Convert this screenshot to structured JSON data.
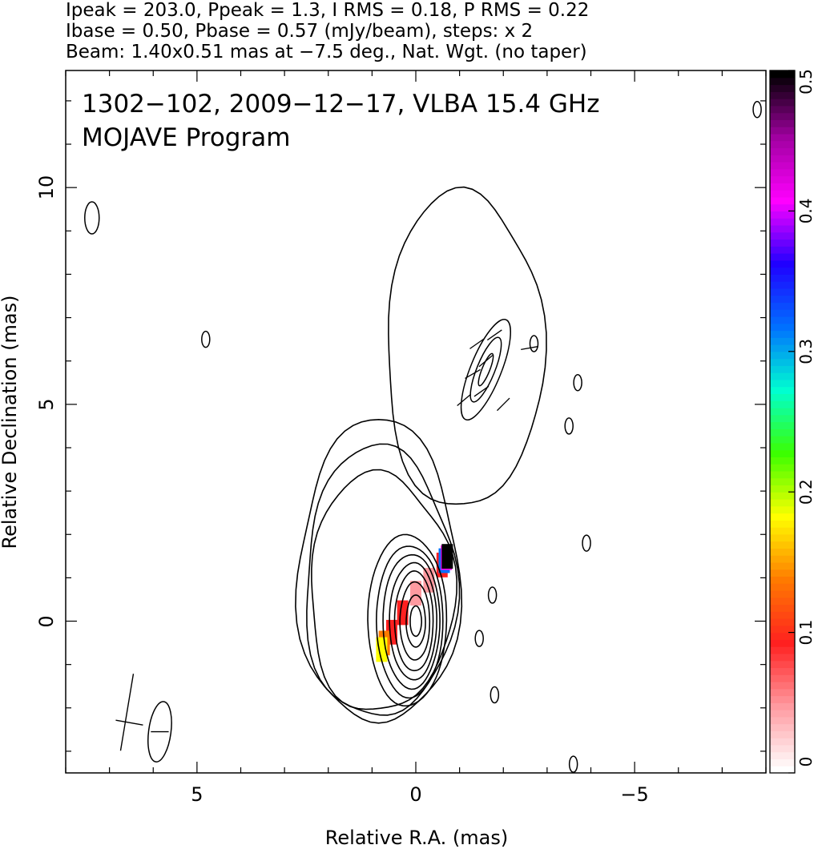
{
  "header": {
    "line1": "Ipeak = 203.0, Ppeak = 1.3, I RMS = 0.18, P RMS = 0.22",
    "line2": "Ibase = 0.50, Pbase = 0.57 (mJy/beam), steps: x 2",
    "line3": "Beam: 1.40x0.51 mas at −7.5 deg., Nat. Wgt. (no taper)"
  },
  "plot_title": {
    "line1": "1302−102, 2009−12−17, VLBA 15.4 GHz",
    "line2": "MOJAVE Program"
  },
  "chart_data": {
    "type": "contour",
    "xlabel": "Relative R.A. (mas)",
    "ylabel": "Relative Declination (mas)",
    "xlim": [
      8,
      -8
    ],
    "ylim": [
      -3.5,
      12.7
    ],
    "x_ticks": [
      5,
      0,
      -5
    ],
    "x_tick_labels": [
      "5",
      "0",
      "−5"
    ],
    "y_ticks": [
      0,
      5,
      10
    ],
    "y_tick_labels": [
      "0",
      "5",
      "10"
    ],
    "grid": false,
    "colorbar": {
      "range": [
        0,
        0.5
      ],
      "ticks": [
        0,
        0.1,
        0.2,
        0.3,
        0.4,
        0.5
      ],
      "tick_labels": [
        "0",
        "0.1",
        "0.2",
        "0.3",
        "0.4",
        "0.5"
      ],
      "colormap": [
        "#ffffff",
        "#ff9aa0",
        "#ff2020",
        "#ff7a00",
        "#ffff00",
        "#3cff00",
        "#00ffd0",
        "#0070ff",
        "#2000ff",
        "#ff00ff",
        "#a000a0",
        "#000000"
      ]
    },
    "core": {
      "x": 0,
      "y": 0,
      "peak_mJy_per_beam": 203.0
    },
    "contours": {
      "base_mJy_per_beam": 0.5,
      "step_factor": 2,
      "color": "#000000",
      "core_levels": [
        {
          "xmin": -1.0,
          "xmax": 2.7,
          "ymin": -2.4,
          "ymax": 4.6,
          "center": [
            0.35,
            1.0
          ]
        },
        {
          "xmin": -0.9,
          "xmax": 2.55,
          "ymin": -2.25,
          "ymax": 4.0,
          "center": [
            0.35,
            0.9
          ]
        },
        {
          "xmin": -0.85,
          "xmax": 2.45,
          "ymin": -2.1,
          "ymax": 3.4,
          "center": [
            0.35,
            0.8
          ]
        },
        {
          "xmin": -0.7,
          "xmax": 1.1,
          "ymin": -1.95,
          "ymax": 2.0,
          "center": [
            0.1,
            0.2
          ]
        },
        {
          "xmin": -0.62,
          "xmax": 0.9,
          "ymin": -1.75,
          "ymax": 1.75,
          "center": [
            0.1,
            0.1
          ]
        },
        {
          "xmin": -0.55,
          "xmax": 0.75,
          "ymin": -1.55,
          "ymax": 1.55,
          "center": [
            0.05,
            0.05
          ]
        },
        {
          "xmin": -0.48,
          "xmax": 0.6,
          "ymin": -1.35,
          "ymax": 1.35,
          "center": [
            0.05,
            0.0
          ]
        },
        {
          "xmin": -0.4,
          "xmax": 0.48,
          "ymin": -1.15,
          "ymax": 1.15,
          "center": [
            0.02,
            0.0
          ]
        },
        {
          "xmin": -0.32,
          "xmax": 0.36,
          "ymin": -0.9,
          "ymax": 0.9,
          "center": [
            0.0,
            0.0
          ]
        },
        {
          "xmin": -0.22,
          "xmax": 0.22,
          "ymin": -0.6,
          "ymax": 0.6,
          "center": [
            0.0,
            0.0
          ]
        },
        {
          "xmin": -0.13,
          "xmax": 0.13,
          "ymin": -0.35,
          "ymax": 0.35,
          "center": [
            0.0,
            0.0
          ]
        }
      ],
      "jet_region": {
        "xmin": -2.9,
        "xmax": 0.7,
        "ymin": 2.6,
        "ymax": 9.9
      },
      "jet_knot": {
        "x": -1.6,
        "y": 5.8
      },
      "isolated_islands": [
        {
          "x": 7.4,
          "y": 9.3
        },
        {
          "x": 4.8,
          "y": 6.5
        },
        {
          "x": -2.7,
          "y": 6.4
        },
        {
          "x": -3.7,
          "y": 5.5
        },
        {
          "x": -3.5,
          "y": 4.5
        },
        {
          "x": -3.9,
          "y": 1.8
        },
        {
          "x": -1.75,
          "y": 0.6
        },
        {
          "x": -1.45,
          "y": -0.4
        },
        {
          "x": -1.8,
          "y": -1.7
        },
        {
          "x": -3.6,
          "y": -3.3
        },
        {
          "x": -7.8,
          "y": 11.8
        }
      ]
    },
    "polarization": {
      "fractional_pixels": [
        {
          "x": -0.6,
          "y": 1.45,
          "value": 0.08
        },
        {
          "x": -0.3,
          "y": 1.1,
          "value": 0.06
        },
        {
          "x": 0.0,
          "y": 0.8,
          "value": 0.05
        },
        {
          "x": 0.3,
          "y": 0.35,
          "value": 0.07
        },
        {
          "x": 0.55,
          "y": -0.1,
          "value": 0.09
        },
        {
          "x": 0.72,
          "y": -0.35,
          "value": 0.15
        },
        {
          "x": 0.78,
          "y": -0.5,
          "value": 0.2
        },
        {
          "x": 0.0,
          "y": 0.05,
          "value": 0.02
        },
        {
          "x": -0.65,
          "y": 1.55,
          "value": 0.3
        },
        {
          "x": -0.7,
          "y": 1.62,
          "value": 0.4
        },
        {
          "x": -0.72,
          "y": 1.65,
          "value": 0.5
        }
      ],
      "evpa_ticks": [
        {
          "x": -1.4,
          "y": 6.4,
          "angle": 35
        },
        {
          "x": -1.6,
          "y": 6.0,
          "angle": 40
        },
        {
          "x": -1.3,
          "y": 5.7,
          "angle": 30
        },
        {
          "x": -1.5,
          "y": 5.3,
          "angle": 35
        },
        {
          "x": -1.1,
          "y": 5.1,
          "angle": 40
        },
        {
          "x": -1.8,
          "y": 6.6,
          "angle": 35
        },
        {
          "x": -2.0,
          "y": 5.0,
          "angle": 45
        },
        {
          "x": -2.6,
          "y": 6.3,
          "angle": 10
        }
      ]
    },
    "beam": {
      "major_mas": 1.4,
      "minor_mas": 0.51,
      "pa_deg": -7.5,
      "x": 5.85,
      "y": -2.55
    },
    "pol_scale_marker": {
      "x": 6.6,
      "y": -2.1
    }
  }
}
